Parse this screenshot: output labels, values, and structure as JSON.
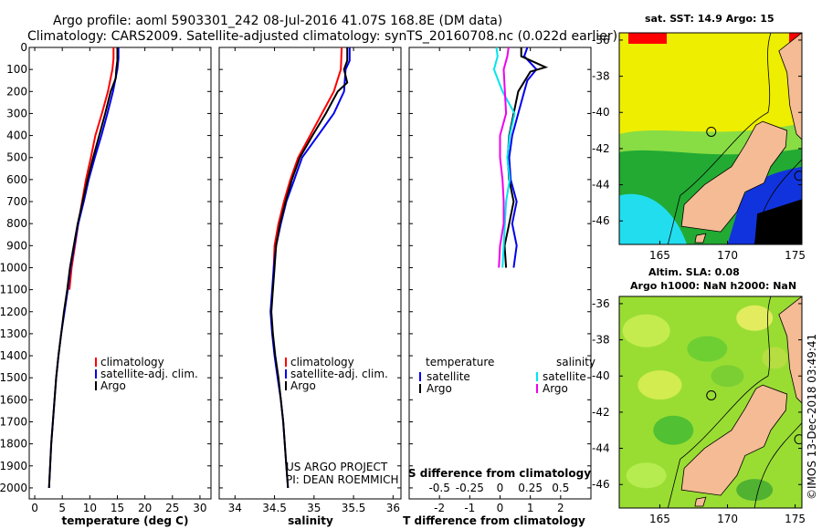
{
  "title": {
    "line1": "Argo profile: aoml 5903301_242 08-Jul-2016 41.07S 168.8E (DM data)",
    "line2": "Climatology: CARS2009. Satellite-adjusted climatology: synTS_20160708.nc (0.022d earlier)"
  },
  "colors": {
    "climatology": "#ff0000",
    "satellite": "#0000ee",
    "argo": "#000000",
    "sat_salinity": "#00e5ee",
    "argo_salinity": "#ee00ee"
  },
  "chart_data": [
    {
      "id": "temperature",
      "type": "line",
      "xlabel": "temperature (deg C)",
      "ylabel": "",
      "xlim": [
        -1,
        32
      ],
      "ylim": [
        0,
        2050
      ],
      "xticks": [
        0,
        5,
        10,
        15,
        20,
        25,
        30
      ],
      "yticks": [
        0,
        100,
        200,
        300,
        400,
        500,
        600,
        700,
        800,
        900,
        1000,
        1100,
        1200,
        1300,
        1400,
        1500,
        1600,
        1700,
        1800,
        1900,
        2000
      ],
      "legend": [
        "climatology",
        "satellite-adj. clim.",
        "Argo"
      ],
      "series": [
        {
          "key": "climatology",
          "color": "#ff0000",
          "points": [
            [
              14.3,
              0
            ],
            [
              14.3,
              50
            ],
            [
              14.1,
              100
            ],
            [
              13.3,
              200
            ],
            [
              12.2,
              300
            ],
            [
              11.0,
              400
            ],
            [
              10.2,
              500
            ],
            [
              9.3,
              600
            ],
            [
              8.6,
              700
            ],
            [
              7.9,
              800
            ],
            [
              7.3,
              900
            ],
            [
              6.7,
              1000
            ],
            [
              6.3,
              1100
            ]
          ]
        },
        {
          "key": "satellite",
          "color": "#0000ee",
          "points": [
            [
              15.2,
              0
            ],
            [
              15.2,
              50
            ],
            [
              15.0,
              100
            ],
            [
              14.2,
              200
            ],
            [
              13.2,
              300
            ],
            [
              12.1,
              400
            ],
            [
              10.9,
              500
            ],
            [
              9.8,
              600
            ],
            [
              8.9,
              700
            ],
            [
              7.9,
              800
            ],
            [
              7.2,
              900
            ],
            [
              6.5,
              1000
            ],
            [
              6.0,
              1100
            ],
            [
              5.4,
              1200
            ],
            [
              4.8,
              1300
            ],
            [
              4.3,
              1400
            ],
            [
              3.9,
              1500
            ],
            [
              3.6,
              1600
            ],
            [
              3.3,
              1700
            ],
            [
              3.0,
              1800
            ],
            [
              2.8,
              1900
            ],
            [
              2.6,
              2000
            ]
          ]
        },
        {
          "key": "argo",
          "color": "#000000",
          "points": [
            [
              15.0,
              0
            ],
            [
              15.0,
              60
            ],
            [
              14.8,
              100
            ],
            [
              14.7,
              140
            ],
            [
              13.8,
              200
            ],
            [
              12.8,
              300
            ],
            [
              11.7,
              400
            ],
            [
              10.6,
              500
            ],
            [
              9.6,
              600
            ],
            [
              8.7,
              700
            ],
            [
              7.8,
              800
            ],
            [
              7.1,
              900
            ],
            [
              6.4,
              1000
            ],
            [
              5.9,
              1100
            ],
            [
              5.3,
              1200
            ],
            [
              4.8,
              1300
            ],
            [
              4.3,
              1400
            ],
            [
              3.9,
              1500
            ],
            [
              3.6,
              1600
            ],
            [
              3.3,
              1700
            ],
            [
              3.0,
              1800
            ],
            [
              2.8,
              1900
            ],
            [
              2.6,
              2000
            ]
          ]
        }
      ]
    },
    {
      "id": "salinity",
      "type": "line",
      "xlabel": "salinity",
      "ylabel": "",
      "xlim": [
        33.8,
        36.1
      ],
      "ylim": [
        0,
        2050
      ],
      "xticks": [
        34,
        34.5,
        35,
        35.5,
        36
      ],
      "xtick_labels": [
        "34",
        "34.5",
        "35",
        "35.5",
        "36"
      ],
      "legend": [
        "climatology",
        "satellite-adj. clim.",
        "Argo"
      ],
      "series": [
        {
          "key": "climatology",
          "color": "#ff0000",
          "points": [
            [
              35.35,
              0
            ],
            [
              35.34,
              100
            ],
            [
              35.25,
              200
            ],
            [
              35.1,
              300
            ],
            [
              34.95,
              400
            ],
            [
              34.8,
              500
            ],
            [
              34.7,
              600
            ],
            [
              34.62,
              700
            ],
            [
              34.55,
              800
            ],
            [
              34.5,
              900
            ],
            [
              34.49,
              1000
            ],
            [
              34.48,
              1100
            ]
          ]
        },
        {
          "key": "satellite",
          "color": "#0000ee",
          "points": [
            [
              35.45,
              0
            ],
            [
              35.45,
              60
            ],
            [
              35.4,
              100
            ],
            [
              35.38,
              200
            ],
            [
              35.25,
              300
            ],
            [
              35.05,
              400
            ],
            [
              34.85,
              500
            ],
            [
              34.75,
              600
            ],
            [
              34.65,
              700
            ],
            [
              34.58,
              800
            ],
            [
              34.52,
              900
            ],
            [
              34.49,
              1000
            ],
            [
              34.47,
              1100
            ],
            [
              34.45,
              1200
            ],
            [
              34.47,
              1300
            ],
            [
              34.5,
              1400
            ],
            [
              34.54,
              1500
            ],
            [
              34.58,
              1600
            ],
            [
              34.61,
              1700
            ],
            [
              34.63,
              1800
            ],
            [
              34.65,
              1900
            ],
            [
              34.67,
              2000
            ]
          ]
        },
        {
          "key": "argo",
          "color": "#000000",
          "points": [
            [
              35.42,
              0
            ],
            [
              35.42,
              60
            ],
            [
              35.38,
              100
            ],
            [
              35.42,
              160
            ],
            [
              35.3,
              200
            ],
            [
              35.15,
              300
            ],
            [
              34.98,
              400
            ],
            [
              34.82,
              500
            ],
            [
              34.72,
              600
            ],
            [
              34.64,
              700
            ],
            [
              34.57,
              800
            ],
            [
              34.52,
              900
            ],
            [
              34.5,
              1000
            ],
            [
              34.48,
              1100
            ],
            [
              34.46,
              1200
            ],
            [
              34.48,
              1300
            ],
            [
              34.51,
              1400
            ],
            [
              34.55,
              1500
            ],
            [
              34.58,
              1600
            ],
            [
              34.61,
              1700
            ],
            [
              34.63,
              1800
            ],
            [
              34.65,
              1900
            ],
            [
              34.67,
              2000
            ]
          ]
        }
      ]
    },
    {
      "id": "difference",
      "type": "line",
      "xlabel": "T difference from climatology",
      "xlabel2": "S difference from climatology",
      "xlim": [
        -3,
        3
      ],
      "ylim": [
        0,
        2050
      ],
      "xticks": [
        -2,
        -1,
        0,
        1,
        2
      ],
      "xtick_labels": [
        "-2",
        "-1",
        "0",
        "1",
        "2"
      ],
      "x2ticks": [
        -0.5,
        -0.25,
        0,
        0.25,
        0.5
      ],
      "x2tick_labels": [
        "-0.5",
        "-0.25",
        "0",
        "0.25",
        "0.5"
      ],
      "legend_titles": [
        "temperature",
        "salinity"
      ],
      "legend_left": [
        "satellite",
        "Argo"
      ],
      "legend_right": [
        "satellite",
        "Argo"
      ],
      "series": [
        {
          "name": "temperature satellite",
          "color": "#0000ee",
          "points": [
            [
              0.9,
              0
            ],
            [
              0.8,
              40
            ],
            [
              1.2,
              100
            ],
            [
              0.9,
              150
            ],
            [
              0.8,
              200
            ],
            [
              0.6,
              300
            ],
            [
              0.4,
              400
            ],
            [
              0.3,
              500
            ],
            [
              0.35,
              600
            ],
            [
              0.55,
              700
            ],
            [
              0.4,
              800
            ],
            [
              0.55,
              900
            ],
            [
              0.45,
              1000
            ]
          ]
        },
        {
          "name": "temperature Argo",
          "color": "#000000",
          "points": [
            [
              0.7,
              0
            ],
            [
              0.7,
              40
            ],
            [
              1.5,
              90
            ],
            [
              1.0,
              110
            ],
            [
              0.6,
              200
            ],
            [
              0.45,
              300
            ],
            [
              0.3,
              400
            ],
            [
              0.25,
              500
            ],
            [
              0.3,
              600
            ],
            [
              0.45,
              700
            ],
            [
              0.3,
              800
            ],
            [
              0.15,
              900
            ],
            [
              0.2,
              1000
            ]
          ]
        },
        {
          "name": "salinity satellite",
          "color": "#00e5ee",
          "points": [
            [
              -0.03,
              0
            ],
            [
              -0.02,
              40
            ],
            [
              -0.05,
              100
            ],
            [
              0.02,
              200
            ],
            [
              0.12,
              300
            ],
            [
              0.08,
              400
            ],
            [
              0.06,
              500
            ],
            [
              0.08,
              600
            ],
            [
              0.05,
              700
            ],
            [
              0.04,
              800
            ],
            [
              0.03,
              900
            ],
            [
              0.02,
              1000
            ]
          ]
        },
        {
          "name": "salinity Argo",
          "color": "#ee00ee",
          "points": [
            [
              0.07,
              0
            ],
            [
              0.06,
              40
            ],
            [
              0.03,
              100
            ],
            [
              0.04,
              200
            ],
            [
              0.05,
              300
            ],
            [
              0.0,
              400
            ],
            [
              0.0,
              500
            ],
            [
              0.02,
              600
            ],
            [
              0.03,
              700
            ],
            [
              0.03,
              800
            ],
            [
              0.0,
              900
            ],
            [
              -0.01,
              1000
            ]
          ]
        }
      ]
    },
    {
      "id": "sst-map",
      "type": "heatmap",
      "title": "sat. SST: 14.9 Argo: 15",
      "xticks": [
        165,
        170,
        175
      ],
      "yticks": [
        -36,
        -38,
        -40,
        -42,
        -44,
        -46
      ],
      "xlim": [
        162,
        175.5
      ],
      "ylim": [
        -47.3,
        -35.6
      ],
      "argo_location": [
        168.8,
        -41.07
      ]
    },
    {
      "id": "sla-map",
      "type": "heatmap",
      "title": "Altim. SLA: 0.08",
      "subtitle": "Argo h1000: NaN h2000: NaN",
      "xticks": [
        165,
        170,
        175
      ],
      "yticks": [
        -36,
        -38,
        -40,
        -42,
        -44,
        -46
      ],
      "xlim": [
        162,
        175.5
      ],
      "ylim": [
        -47.3,
        -35.6
      ],
      "argo_location": [
        168.8,
        -41.07
      ]
    }
  ],
  "annotations": {
    "project": "US ARGO PROJECT",
    "pi": "PI: DEAN ROEMMICH",
    "credit": "©IMOS 13-Dec-2018 03:49:41"
  }
}
